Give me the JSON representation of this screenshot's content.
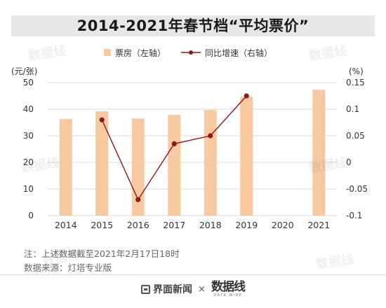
{
  "title": "2014-2021年春节档“平均票价”",
  "legend": {
    "bar_label": "票房（左轴）",
    "line_label": "同比增速（右轴）"
  },
  "axes": {
    "left_unit": "(元/张)",
    "right_unit": "(%)"
  },
  "colors": {
    "bar": "#f7c9a1",
    "line": "#8b1a1a",
    "grid": "#d9d9d9",
    "text": "#333333"
  },
  "chart_data": {
    "type": "bar",
    "categories": [
      "2014",
      "2015",
      "2016",
      "2017",
      "2018",
      "2019",
      "2020",
      "2021"
    ],
    "series": [
      {
        "name": "票房（左轴）",
        "axis": "left",
        "kind": "bar",
        "values": [
          36.3,
          39.2,
          36.5,
          37.9,
          39.7,
          44.7,
          null,
          47.3
        ]
      },
      {
        "name": "同比增速（右轴）",
        "axis": "right",
        "kind": "line",
        "values": [
          null,
          0.08,
          -0.07,
          0.035,
          0.05,
          0.125,
          null,
          null
        ]
      }
    ],
    "ylim_left": [
      0,
      50
    ],
    "yticks_left": [
      "0",
      "10",
      "20",
      "30",
      "40",
      "50"
    ],
    "ylim_right": [
      -0.1,
      0.15
    ],
    "yticks_right": [
      "-0.1",
      "-0.05",
      "0",
      "0.05",
      "0.1",
      "0.15"
    ],
    "grid": true,
    "legend_position": "top-center"
  },
  "notes": {
    "line1": "注：上述数据截至2021年2月17日18时",
    "line2": "数据来源：灯塔专业版"
  },
  "footer": {
    "logo_text": "界面新闻",
    "times": "×",
    "partner_main": "数据线",
    "partner_sub": "DATA WIRE"
  }
}
